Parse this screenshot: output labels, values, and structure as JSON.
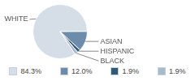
{
  "chart_data": {
    "type": "pie",
    "categories": [
      "WHITE",
      "ASIAN",
      "HISPANIC",
      "BLACK"
    ],
    "values": [
      84.3,
      12.0,
      1.9,
      1.9
    ],
    "value_labels": [
      "84.3%",
      "12.0%",
      "1.9%",
      "1.9%"
    ],
    "colors": [
      "#d5dde6",
      "#6b8cab",
      "#2d5a7c",
      "#a7bacb"
    ],
    "legend": "bottom"
  }
}
